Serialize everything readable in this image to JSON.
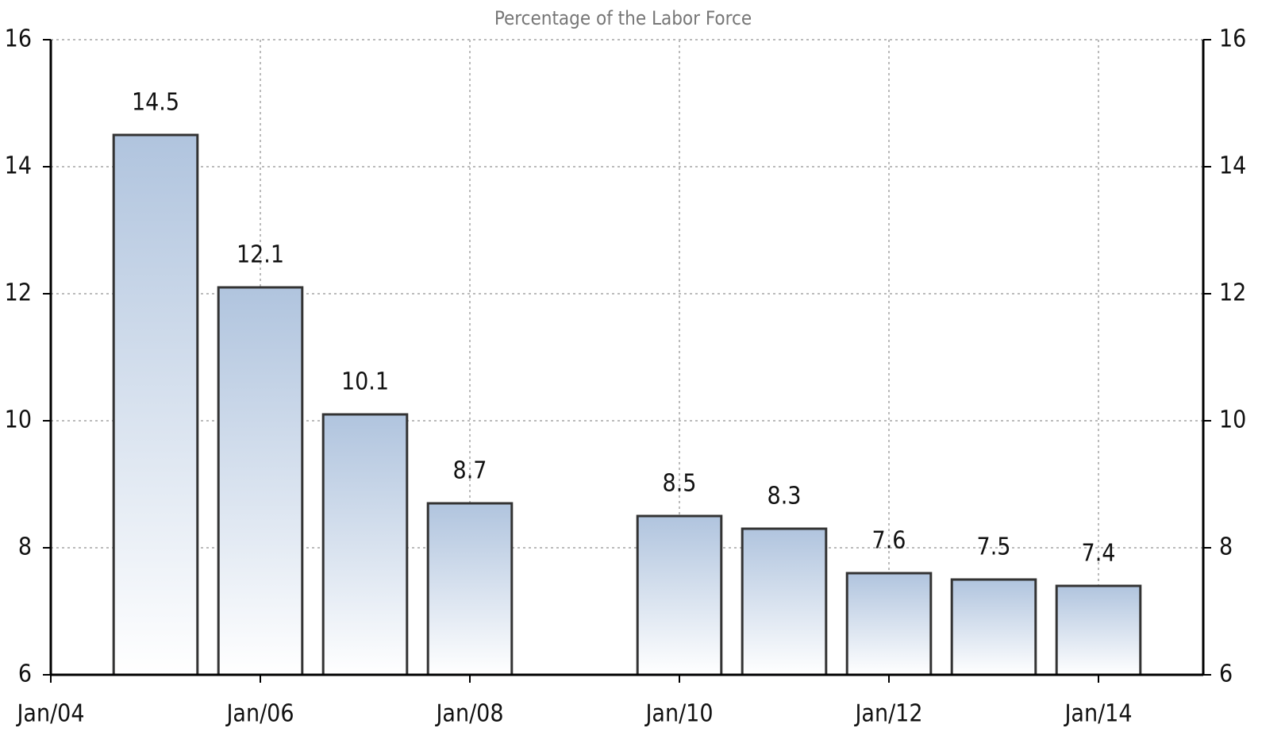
{
  "chart_data": {
    "type": "bar",
    "title": "Percentage of the Labor Force",
    "x": [
      2005,
      2006,
      2007,
      2008,
      2010,
      2011,
      2012,
      2013,
      2014
    ],
    "values": [
      14.5,
      12.1,
      10.1,
      8.7,
      8.5,
      8.3,
      7.6,
      7.5,
      7.4
    ],
    "color": "#b0c4de",
    "xlim": [
      2004,
      2015
    ],
    "xticks": [
      {
        "value": 2004,
        "label": "Jan/04"
      },
      {
        "value": 2006,
        "label": "Jan/06"
      },
      {
        "value": 2008,
        "label": "Jan/08"
      },
      {
        "value": 2010,
        "label": "Jan/10"
      },
      {
        "value": 2012,
        "label": "Jan/12"
      },
      {
        "value": 2014,
        "label": "Jan/14"
      }
    ],
    "ylim": [
      6,
      16
    ],
    "yticks": [
      6,
      8,
      10,
      12,
      14,
      16
    ],
    "grid": true
  }
}
